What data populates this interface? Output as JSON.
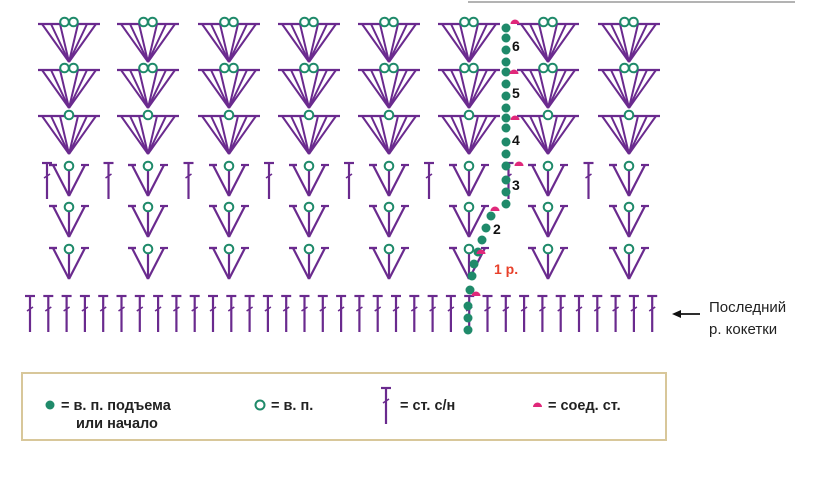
{
  "colors": {
    "stitch": "#6a2a8e",
    "chain": "#1f8a6a",
    "slip": "#e0287a",
    "row_label_red": "#e8402a",
    "legend_border": "#d8c79a"
  },
  "row_labels": [
    "1 р.",
    "2",
    "3",
    "4",
    "5",
    "6"
  ],
  "last_row_note": {
    "line1": "Последний",
    "line2": "р. кокетки"
  },
  "legend": {
    "turning_chain": {
      "line1": "= в. п. подъема",
      "line2": "или начало"
    },
    "chain": "= в. п.",
    "double_crochet": "= ст. с/н",
    "slip_stitch": "= соед. ст."
  }
}
